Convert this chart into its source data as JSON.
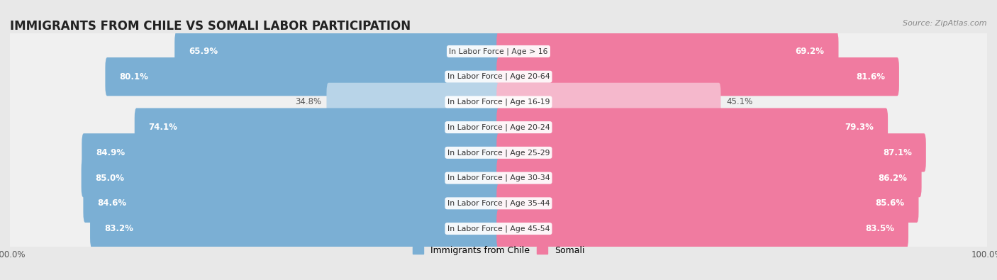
{
  "title": "IMMIGRANTS FROM CHILE VS SOMALI LABOR PARTICIPATION",
  "source": "Source: ZipAtlas.com",
  "categories": [
    "In Labor Force | Age > 16",
    "In Labor Force | Age 20-64",
    "In Labor Force | Age 16-19",
    "In Labor Force | Age 20-24",
    "In Labor Force | Age 25-29",
    "In Labor Force | Age 30-34",
    "In Labor Force | Age 35-44",
    "In Labor Force | Age 45-54"
  ],
  "chile_values": [
    65.9,
    80.1,
    34.8,
    74.1,
    84.9,
    85.0,
    84.6,
    83.2
  ],
  "somali_values": [
    69.2,
    81.6,
    45.1,
    79.3,
    87.1,
    86.2,
    85.6,
    83.5
  ],
  "chile_color_strong": "#7BAFD4",
  "chile_color_light": "#B8D4E8",
  "somali_color_strong": "#F07BA0",
  "somali_color_light": "#F5B8CC",
  "background_color": "#e8e8e8",
  "row_bg_even": "#f5f5f5",
  "row_bg_odd": "#e0e0e0",
  "title_fontsize": 12,
  "max_value": 100.0,
  "legend_chile": "Immigrants from Chile",
  "legend_somali": "Somali",
  "chile_threshold": 50.0,
  "somali_threshold": 50.0
}
